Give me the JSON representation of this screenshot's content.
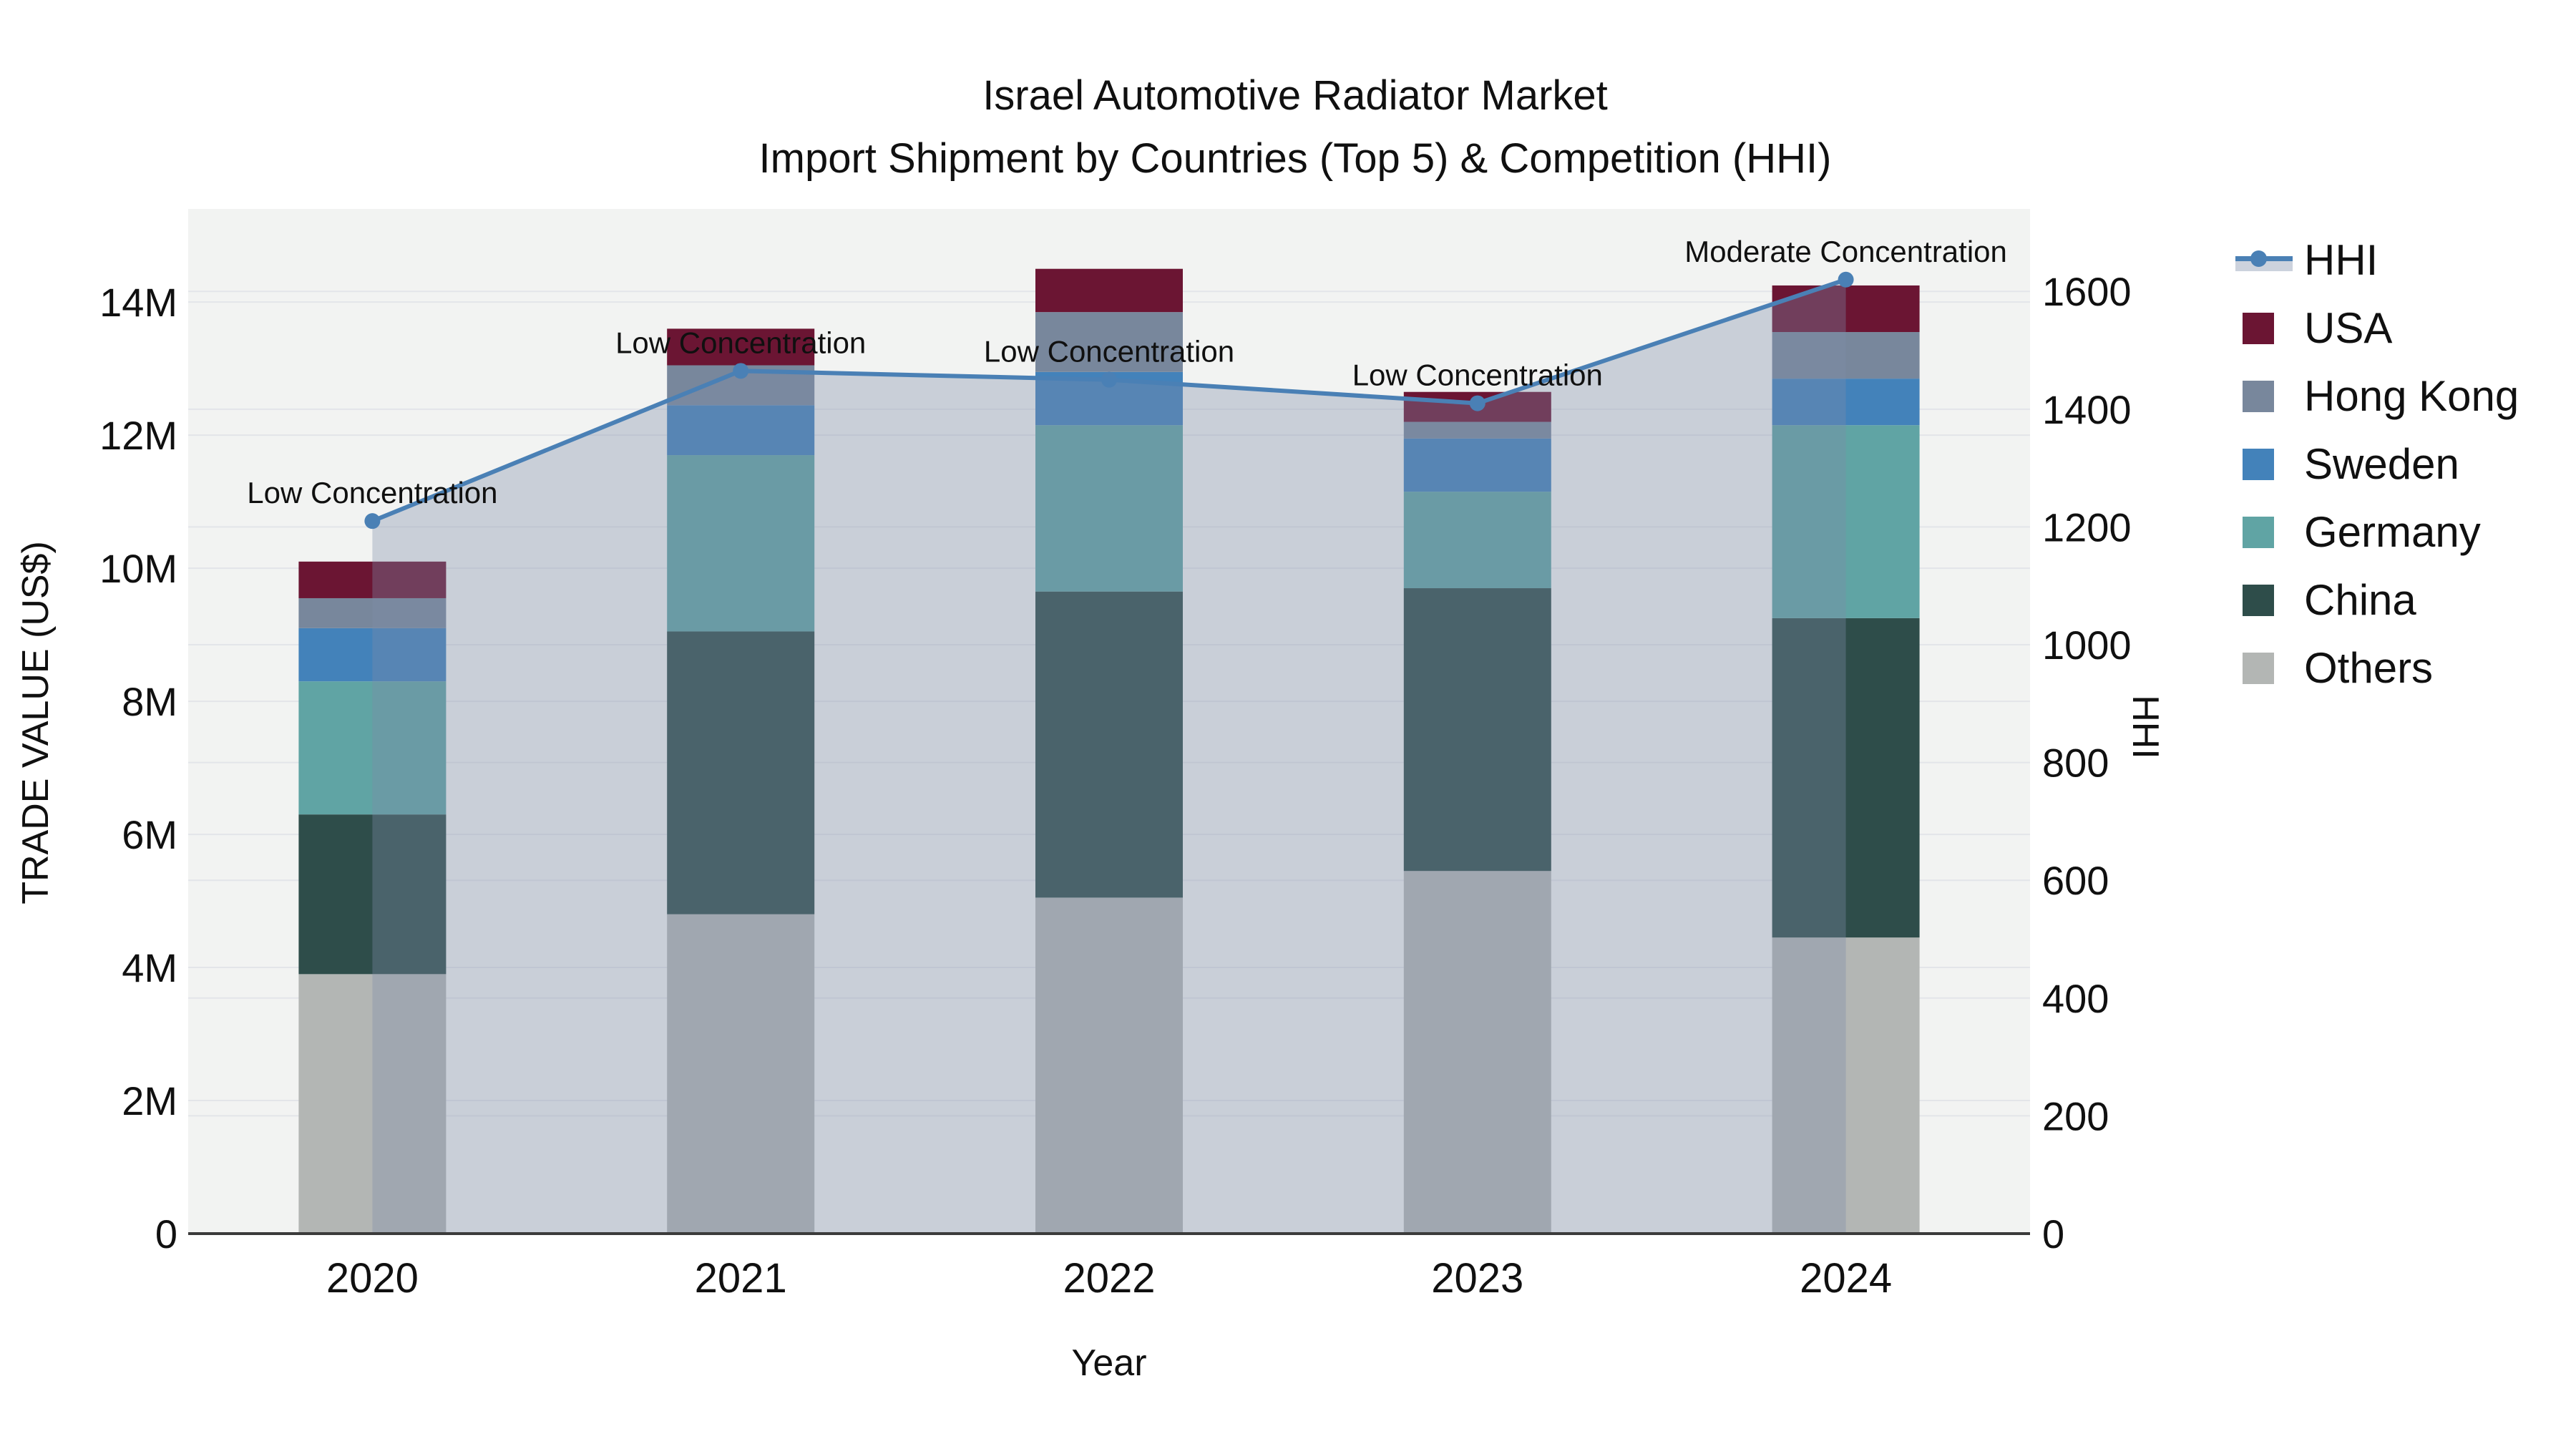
{
  "page": {
    "background": "#ffffff"
  },
  "chart_data": {
    "type": "combo_stacked_bar_line",
    "title": "Israel Automotive Radiator Market",
    "subtitle": "Import Shipment by Countries (Top 5) & Competition (HHI)",
    "xlabel": "Year",
    "ylabel_left": "TRADE VALUE (US$)",
    "ylabel_right": "HHI",
    "categories": [
      "2020",
      "2021",
      "2022",
      "2023",
      "2024"
    ],
    "bar_value_unit": "million US$",
    "series": [
      {
        "name": "Others",
        "color": "#b3b6b4",
        "values": [
          3.9,
          4.8,
          5.05,
          5.45,
          4.45
        ]
      },
      {
        "name": "China",
        "color": "#2e4d4a",
        "values": [
          2.4,
          4.25,
          4.6,
          4.25,
          4.8
        ]
      },
      {
        "name": "Germany",
        "color": "#60a4a4",
        "values": [
          2.0,
          2.65,
          2.5,
          1.45,
          2.9
        ]
      },
      {
        "name": "Sweden",
        "color": "#4382ba",
        "values": [
          0.8,
          0.75,
          0.8,
          0.8,
          0.7
        ]
      },
      {
        "name": "Hong Kong",
        "color": "#78879c",
        "values": [
          0.45,
          0.6,
          0.9,
          0.25,
          0.7
        ]
      },
      {
        "name": "USA",
        "color": "#6b1533",
        "values": [
          0.55,
          0.55,
          0.65,
          0.45,
          0.7
        ]
      }
    ],
    "bar_totals": [
      10.1,
      13.6,
      14.5,
      12.65,
      14.25
    ],
    "line_series": {
      "name": "HHI",
      "axis": "right",
      "color": "#4a80b5",
      "fill_color": "rgba(125,140,170,0.35)",
      "values": [
        1210,
        1465,
        1450,
        1410,
        1620
      ]
    },
    "annotations": [
      {
        "category": "2020",
        "text": "Low Concentration"
      },
      {
        "category": "2021",
        "text": "Low Concentration"
      },
      {
        "category": "2022",
        "text": "Low Concentration"
      },
      {
        "category": "2023",
        "text": "Low Concentration"
      },
      {
        "category": "2024",
        "text": "Moderate Concentration"
      }
    ],
    "axes": {
      "left": {
        "tick_labels": [
          "0",
          "2M",
          "4M",
          "6M",
          "8M",
          "10M",
          "12M",
          "14M"
        ],
        "tick_values": [
          0,
          2,
          4,
          6,
          8,
          10,
          12,
          14
        ],
        "range": [
          0,
          15.4
        ]
      },
      "right": {
        "tick_labels": [
          "0",
          "200",
          "400",
          "600",
          "800",
          "1000",
          "1200",
          "1400",
          "1600"
        ],
        "tick_values": [
          0,
          200,
          400,
          600,
          800,
          1000,
          1200,
          1400,
          1600
        ],
        "range": [
          0,
          1740
        ]
      },
      "x": {
        "tick_labels": [
          "2020",
          "2021",
          "2022",
          "2023",
          "2024"
        ]
      }
    },
    "legend": {
      "position": "right",
      "items": [
        {
          "label": "HHI",
          "type": "line",
          "color": "#4a80b5"
        },
        {
          "label": "USA",
          "type": "swatch",
          "color": "#6b1533"
        },
        {
          "label": "Hong Kong",
          "type": "swatch",
          "color": "#78879c"
        },
        {
          "label": "Sweden",
          "type": "swatch",
          "color": "#4382ba"
        },
        {
          "label": "Germany",
          "type": "swatch",
          "color": "#60a4a4"
        },
        {
          "label": "China",
          "type": "swatch",
          "color": "#2e4d4a"
        },
        {
          "label": "Others",
          "type": "swatch",
          "color": "#b3b6b4"
        }
      ]
    },
    "grid": true,
    "plot_background": "#f2f3f2",
    "grid_color": "#e3e5e9",
    "axisline_color": "#3b3b3b",
    "text_color": "#101010"
  }
}
